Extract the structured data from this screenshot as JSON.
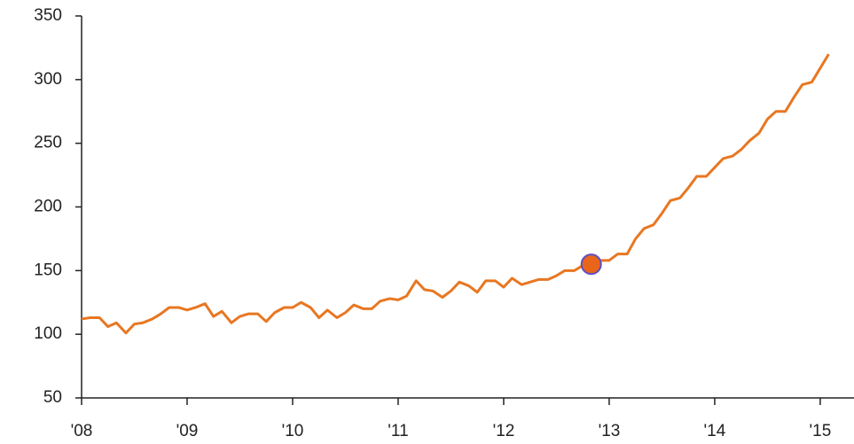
{
  "chart_data": {
    "type": "line",
    "x": [
      2008.0,
      2008.08,
      2008.17,
      2008.25,
      2008.33,
      2008.42,
      2008.5,
      2008.58,
      2008.67,
      2008.75,
      2008.83,
      2008.92,
      2009.0,
      2009.08,
      2009.17,
      2009.25,
      2009.33,
      2009.42,
      2009.5,
      2009.58,
      2009.67,
      2009.75,
      2009.83,
      2009.92,
      2010.0,
      2010.08,
      2010.17,
      2010.25,
      2010.33,
      2010.42,
      2010.5,
      2010.58,
      2010.67,
      2010.75,
      2010.83,
      2010.92,
      2011.0,
      2011.08,
      2011.17,
      2011.25,
      2011.33,
      2011.42,
      2011.5,
      2011.58,
      2011.67,
      2011.75,
      2011.83,
      2011.92,
      2012.0,
      2012.08,
      2012.17,
      2012.25,
      2012.33,
      2012.42,
      2012.5,
      2012.58,
      2012.67,
      2012.75,
      2012.83,
      2012.92,
      2013.0,
      2013.08,
      2013.17,
      2013.25,
      2013.33,
      2013.42,
      2013.5,
      2013.58,
      2013.67,
      2013.75,
      2013.83,
      2013.92,
      2014.0,
      2014.08,
      2014.17,
      2014.25,
      2014.33,
      2014.42,
      2014.5,
      2014.58,
      2014.67,
      2014.75,
      2014.83,
      2014.92,
      2015.0,
      2015.08
    ],
    "series": [
      {
        "color": "#e87722",
        "values": [
          112,
          113,
          113,
          106,
          109,
          101,
          108,
          109,
          112,
          116,
          121,
          121,
          119,
          121,
          124,
          114,
          118,
          109,
          114,
          116,
          116,
          110,
          117,
          121,
          121,
          125,
          121,
          113,
          119,
          113,
          117,
          123,
          120,
          120,
          126,
          128,
          127,
          130,
          142,
          135,
          134,
          129,
          134,
          141,
          138,
          133,
          142,
          142,
          137,
          144,
          139,
          141,
          143,
          143,
          146,
          150,
          150,
          154,
          155,
          158,
          158,
          163,
          163,
          175,
          183,
          186,
          195,
          205,
          207,
          215,
          224,
          224,
          231,
          238,
          240,
          245,
          252,
          258,
          269,
          275,
          275,
          286,
          296,
          298,
          309,
          320
        ]
      }
    ],
    "highlight": {
      "x": 2012.83,
      "y": 155,
      "color": "#e8651a",
      "edge": "#5b4fc7"
    },
    "xlim": [
      2008,
      2015.32
    ],
    "xticks": [
      {
        "value": 2008,
        "label": "'08"
      },
      {
        "value": 2009,
        "label": "'09"
      },
      {
        "value": 2010,
        "label": "'10"
      },
      {
        "value": 2011,
        "label": "'11"
      },
      {
        "value": 2012,
        "label": "'12"
      },
      {
        "value": 2013,
        "label": "'13"
      },
      {
        "value": 2014,
        "label": "'14"
      },
      {
        "value": 2015,
        "label": "'15"
      }
    ],
    "ylim": [
      50,
      350
    ],
    "yticks": [
      50,
      100,
      150,
      200,
      250,
      300,
      350
    ]
  }
}
